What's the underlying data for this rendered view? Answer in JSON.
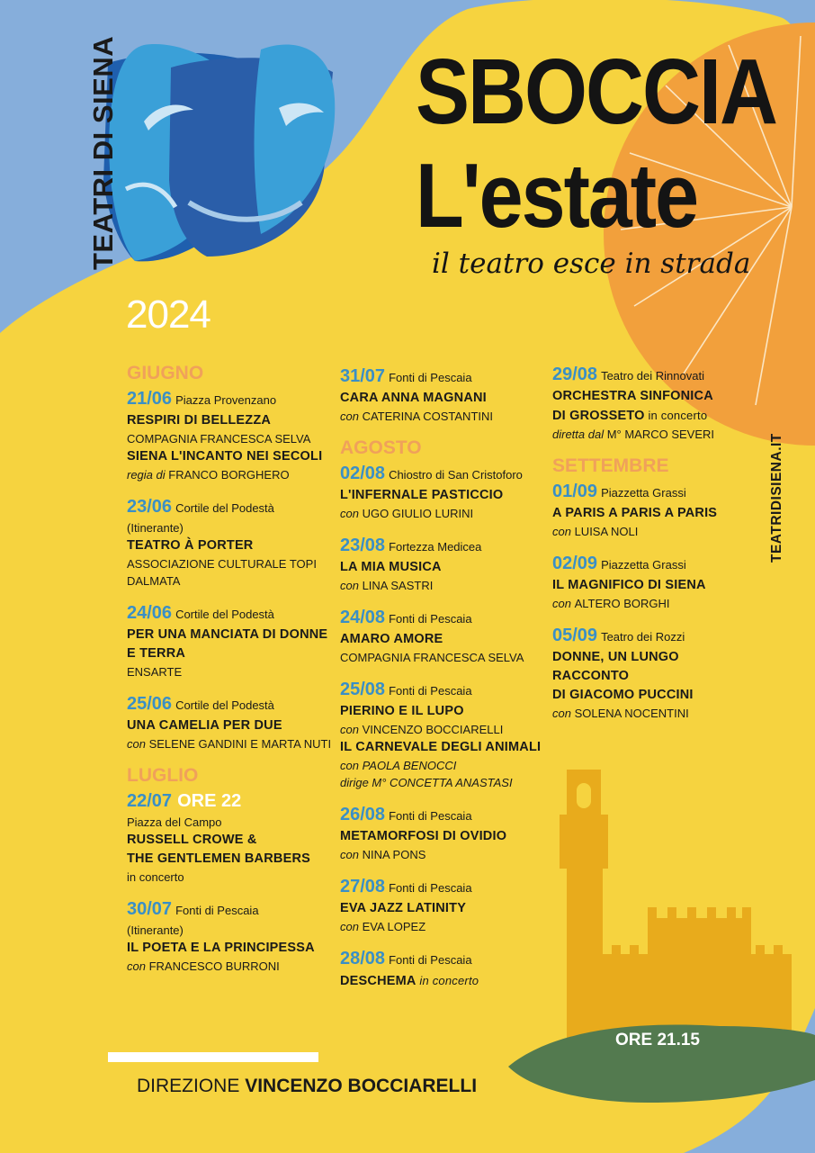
{
  "colors": {
    "yellow": "#f6d33f",
    "blue": "#86aedb",
    "orange": "#f2a03c",
    "date_blue": "#3a8fc6",
    "month_orange": "#f0a15a",
    "tower": "#e8ab1c",
    "green": "#537a4f"
  },
  "brand": {
    "name": "TEATRI DI SIENA",
    "website": "TEATRIDISIENA.IT"
  },
  "headline": {
    "line1": "SBOCCIA",
    "line2": "L'estate",
    "tagline": "il teatro esce in strada"
  },
  "year": "2024",
  "columns": [
    {
      "blocks": [
        {
          "month": "GIUGNO"
        },
        {
          "date": "21/06",
          "venue": "Piazza Provenzano",
          "lines": [
            {
              "t": "RESPIRI DI BELLEZZA",
              "s": "title"
            },
            {
              "t": "COMPAGNIA FRANCESCA SELVA",
              "s": "sub"
            },
            {
              "t": "SIENA L'INCANTO NEI SECOLI",
              "s": "title"
            },
            {
              "pre": "regia di ",
              "t": "FRANCO BORGHERO",
              "s": "sub"
            }
          ]
        },
        {
          "date": "23/06",
          "venue": "Cortile del Podestà",
          "lines": [
            {
              "t": "(Itinerante)",
              "s": "sub"
            },
            {
              "t": "TEATRO À PORTER",
              "s": "title"
            },
            {
              "t": "ASSOCIAZIONE CULTURALE TOPI",
              "s": "sub"
            },
            {
              "t": "DALMATA",
              "s": "sub"
            }
          ]
        },
        {
          "date": "24/06",
          "venue": "Cortile del Podestà",
          "lines": [
            {
              "t": "PER UNA MANCIATA DI DONNE",
              "s": "title"
            },
            {
              "t": "E TERRA",
              "s": "title"
            },
            {
              "t": "ENSARTE",
              "s": "sub"
            }
          ]
        },
        {
          "date": "25/06",
          "venue": "Cortile del Podestà",
          "lines": [
            {
              "t": "UNA CAMELIA PER DUE",
              "s": "title"
            },
            {
              "pre": "con ",
              "t": "SELENE GANDINI E MARTA NUTI",
              "s": "sub"
            }
          ]
        },
        {
          "month": "LUGLIO"
        },
        {
          "date": "22/07",
          "highlight": "ORE 22",
          "lines": [
            {
              "t": "Piazza del Campo",
              "s": "sub"
            },
            {
              "t": "RUSSELL CROWE &",
              "s": "title"
            },
            {
              "t": "THE GENTLEMEN BARBERS",
              "s": "title"
            },
            {
              "t": "in concerto",
              "s": "sub"
            }
          ]
        },
        {
          "date": "30/07",
          "venue": "Fonti di Pescaia",
          "lines": [
            {
              "t": "(Itinerante)",
              "s": "sub"
            },
            {
              "t": "IL POETA E LA PRINCIPESSA",
              "s": "title"
            },
            {
              "pre": "con ",
              "t": "FRANCESCO BURRONI",
              "s": "sub"
            }
          ]
        }
      ]
    },
    {
      "blocks": [
        {
          "date": "31/07",
          "venue": "Fonti di Pescaia",
          "lines": [
            {
              "t": "CARA ANNA MAGNANI",
              "s": "title"
            },
            {
              "pre": "con ",
              "t": "CATERINA COSTANTINI",
              "s": "sub"
            }
          ]
        },
        {
          "month": "AGOSTO"
        },
        {
          "date": "02/08",
          "venue": "Chiostro di San Cristoforo",
          "lines": [
            {
              "t": "L'INFERNALE PASTICCIO",
              "s": "title"
            },
            {
              "pre": "con ",
              "t": "UGO GIULIO LURINI",
              "s": "sub"
            }
          ]
        },
        {
          "date": "23/08",
          "venue": "Fortezza Medicea",
          "lines": [
            {
              "t": "LA MIA MUSICA",
              "s": "title"
            },
            {
              "pre": "con ",
              "t": "LINA SASTRI",
              "s": "sub"
            }
          ]
        },
        {
          "date": "24/08",
          "venue": "Fonti di Pescaia",
          "lines": [
            {
              "t": "AMARO AMORE",
              "s": "title"
            },
            {
              "t": "COMPAGNIA FRANCESCA SELVA",
              "s": "sub"
            }
          ]
        },
        {
          "date": "25/08",
          "venue": "Fonti di Pescaia",
          "lines": [
            {
              "t": "PIERINO E IL LUPO",
              "s": "title"
            },
            {
              "pre": "con ",
              "t": "VINCENZO BOCCIARELLI",
              "s": "sub"
            },
            {
              "t": "IL CARNEVALE DEGLI ANIMALI",
              "s": "title"
            },
            {
              "pre": "con ",
              "t": "PAOLA BENOCCI",
              "s": "subit"
            },
            {
              "pre": "dirige ",
              "t": "M° CONCETTA ANASTASI",
              "s": "subit"
            }
          ]
        },
        {
          "date": "26/08",
          "venue": "Fonti di Pescaia",
          "lines": [
            {
              "t": "METAMORFOSI DI OVIDIO",
              "s": "title"
            },
            {
              "pre": "con ",
              "t": "NINA PONS",
              "s": "sub"
            }
          ]
        },
        {
          "date": "27/08",
          "venue": "Fonti di Pescaia",
          "lines": [
            {
              "t": "EVA JAZZ LATINITY",
              "s": "title"
            },
            {
              "pre": "con ",
              "t": "EVA LOPEZ",
              "s": "sub"
            }
          ]
        },
        {
          "date": "28/08",
          "venue": "Fonti di Pescaia",
          "lines": [
            {
              "t": "DESCHEMA",
              "s": "title",
              "post": " in concerto"
            }
          ]
        }
      ]
    },
    {
      "blocks": [
        {
          "date": "29/08",
          "venue": "Teatro dei Rinnovati",
          "lines": [
            {
              "t": "ORCHESTRA SINFONICA",
              "s": "title"
            },
            {
              "t": "DI GROSSETO",
              "s": "title",
              "post": " in concerto"
            },
            {
              "pre": "diretta dal ",
              "t": "M° MARCO SEVERI",
              "s": "sub"
            }
          ]
        },
        {
          "month": "SETTEMBRE"
        },
        {
          "date": "01/09",
          "venue": "Piazzetta Grassi",
          "lines": [
            {
              "t": "A PARIS A PARIS A PARIS",
              "s": "title"
            },
            {
              "pre": "con ",
              "t": "LUISA NOLI",
              "s": "sub"
            }
          ]
        },
        {
          "date": "02/09",
          "venue": "Piazzetta Grassi",
          "lines": [
            {
              "t": "IL MAGNIFICO DI SIENA",
              "s": "title"
            },
            {
              "pre": "con ",
              "t": "ALTERO BORGHI",
              "s": "sub"
            }
          ]
        },
        {
          "date": "05/09",
          "venue": "Teatro dei Rozzi",
          "lines": [
            {
              "t": "DONNE, UN LUNGO RACCONTO",
              "s": "title"
            },
            {
              "t": "DI GIACOMO PUCCINI",
              "s": "title"
            },
            {
              "pre": "con ",
              "t": "SOLENA NOCENTINI",
              "s": "sub"
            }
          ]
        }
      ]
    }
  ],
  "time": "ORE 21.15",
  "footer": {
    "label": "DIREZIONE",
    "name": "VINCENZO BOCCIARELLI"
  }
}
